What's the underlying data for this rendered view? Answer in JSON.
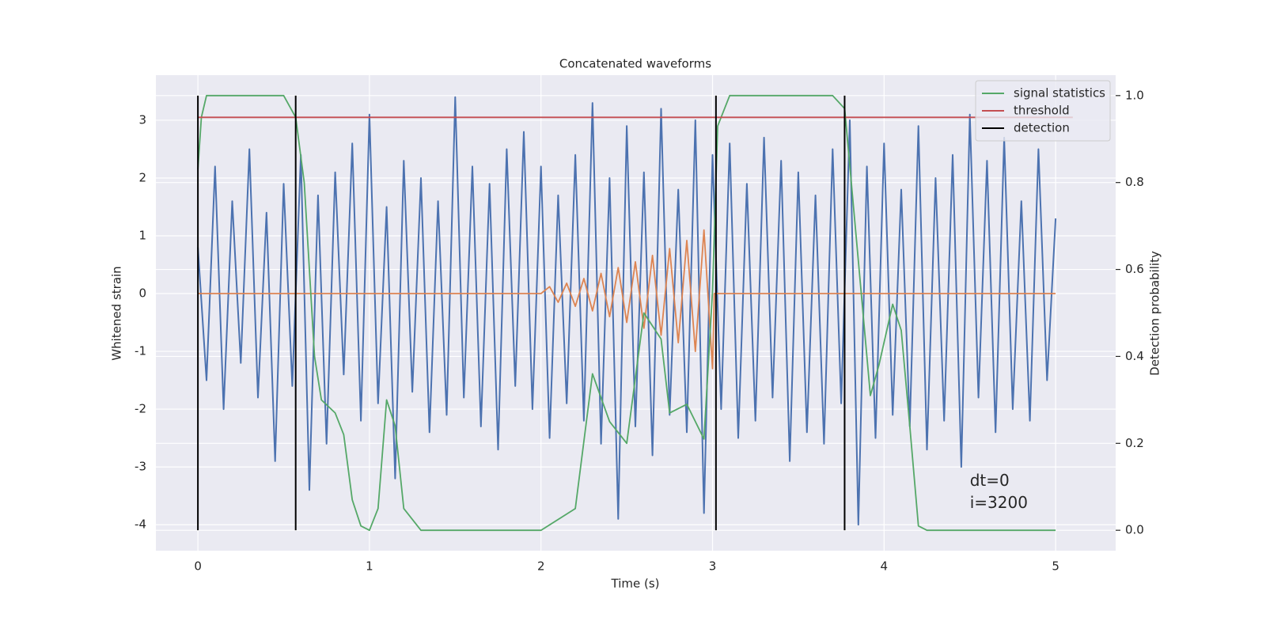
{
  "chart_data": {
    "type": "line",
    "title": "Concatenated waveforms",
    "xlabel": "Time (s)",
    "ylabel": "Whitened strain",
    "y2label": "Detection probability",
    "xlim": [
      -0.245,
      5.35
    ],
    "ylim": [
      -4.45,
      3.78
    ],
    "y2lim": [
      -0.047,
      1.047
    ],
    "xticks": [
      0,
      1,
      2,
      3,
      4,
      5
    ],
    "yticks": [
      -4,
      -3,
      -2,
      -1,
      0,
      1,
      2,
      3
    ],
    "y2ticks": [
      {
        "value": 0,
        "label": "0.0"
      },
      0.2,
      0.4,
      0.6,
      0.8,
      {
        "value": 1,
        "label": "1.0"
      }
    ],
    "grid": true,
    "legend": "upper right",
    "series": [
      {
        "color": "#4c72b0",
        "kind": "line",
        "x": [
          0,
          0.05,
          0.1,
          0.15,
          0.2,
          0.25,
          0.3,
          0.35,
          0.4,
          0.45,
          0.5,
          0.55,
          0.6,
          0.65,
          0.7,
          0.75,
          0.8,
          0.85,
          0.9,
          0.95,
          1,
          1.05,
          1.1,
          1.15,
          1.2,
          1.25,
          1.3,
          1.35,
          1.4,
          1.45,
          1.5,
          1.55,
          1.6,
          1.65,
          1.7,
          1.75,
          1.8,
          1.85,
          1.9,
          1.95,
          2,
          2.05,
          2.1,
          2.15,
          2.2,
          2.25,
          2.3,
          2.35,
          2.4,
          2.45,
          2.5,
          2.55,
          2.6,
          2.65,
          2.7,
          2.75,
          2.8,
          2.85,
          2.9,
          2.95,
          3,
          3.05,
          3.1,
          3.15,
          3.2,
          3.25,
          3.3,
          3.35,
          3.4,
          3.45,
          3.5,
          3.55,
          3.6,
          3.65,
          3.7,
          3.75,
          3.8,
          3.85,
          3.9,
          3.95,
          4,
          4.05,
          4.1,
          4.15,
          4.2,
          4.25,
          4.3,
          4.35,
          4.4,
          4.45,
          4.5,
          4.55,
          4.6,
          4.65,
          4.7,
          4.75,
          4.8,
          4.85,
          4.9,
          4.95,
          5
        ],
        "values": [
          0.8,
          -1.5,
          2.2,
          -2.0,
          1.6,
          -1.2,
          2.5,
          -1.8,
          1.4,
          -2.9,
          1.9,
          -1.6,
          2.4,
          -3.4,
          1.7,
          -2.6,
          2.1,
          -1.4,
          2.6,
          -2.2,
          3.1,
          -1.9,
          1.5,
          -3.2,
          2.3,
          -1.7,
          2.0,
          -2.4,
          1.6,
          -2.1,
          3.4,
          -1.8,
          2.2,
          -2.3,
          1.9,
          -2.7,
          2.5,
          -1.6,
          2.8,
          -2.0,
          2.2,
          -2.5,
          1.7,
          -1.9,
          2.4,
          -2.2,
          3.3,
          -2.6,
          2.0,
          -3.9,
          2.9,
          -2.3,
          2.1,
          -2.8,
          3.2,
          -2.1,
          1.8,
          -2.4,
          3.0,
          -3.8,
          2.4,
          -2.0,
          2.6,
          -2.5,
          1.9,
          -2.2,
          2.7,
          -1.8,
          2.3,
          -2.9,
          2.1,
          -2.4,
          1.7,
          -2.6,
          2.5,
          -1.9,
          3.0,
          -4.0,
          2.2,
          -2.5,
          2.6,
          -2.1,
          1.8,
          -2.3,
          2.9,
          -2.7,
          2.0,
          -2.2,
          2.4,
          -3.0,
          3.1,
          -1.8,
          2.3,
          -2.4,
          2.7,
          -2.0,
          1.6,
          -2.2,
          2.5,
          -1.5,
          1.3
        ]
      },
      {
        "color": "#dd8452",
        "kind": "line",
        "x": [
          0,
          2.0,
          2.05,
          2.1,
          2.15,
          2.2,
          2.25,
          2.3,
          2.35,
          2.4,
          2.45,
          2.5,
          2.55,
          2.6,
          2.65,
          2.7,
          2.75,
          2.8,
          2.85,
          2.9,
          2.95,
          3.0,
          3.01,
          5
        ],
        "values": [
          0,
          0,
          0.12,
          -0.15,
          0.18,
          -0.22,
          0.26,
          -0.3,
          0.35,
          -0.4,
          0.45,
          -0.5,
          0.55,
          -0.6,
          0.66,
          -0.72,
          0.78,
          -0.85,
          0.92,
          -1.0,
          1.1,
          -1.3,
          0,
          0
        ]
      },
      {
        "name": "signal statistics",
        "color": "#55a868",
        "kind": "line",
        "axis": "y2",
        "x": [
          0,
          0.02,
          0.05,
          0.5,
          0.57,
          0.62,
          0.68,
          0.72,
          0.8,
          0.85,
          0.9,
          0.95,
          1.0,
          1.05,
          1.1,
          1.15,
          1.2,
          1.3,
          2.0,
          2.2,
          2.3,
          2.4,
          2.5,
          2.6,
          2.7,
          2.75,
          2.85,
          2.95,
          3.0,
          3.03,
          3.1,
          3.7,
          3.77,
          3.85,
          3.92,
          3.97,
          4.05,
          4.1,
          4.15,
          4.2,
          4.25,
          5.0
        ],
        "values": [
          0.83,
          0.95,
          1.0,
          1.0,
          0.95,
          0.8,
          0.4,
          0.3,
          0.27,
          0.22,
          0.07,
          0.01,
          0,
          0.05,
          0.3,
          0.24,
          0.05,
          0,
          0,
          0.05,
          0.36,
          0.25,
          0.2,
          0.5,
          0.44,
          0.27,
          0.29,
          0.21,
          0.55,
          0.93,
          1.0,
          1.0,
          0.97,
          0.62,
          0.31,
          0.38,
          0.52,
          0.46,
          0.24,
          0.01,
          0,
          0
        ]
      },
      {
        "name": "threshold",
        "color": "#c44e52",
        "kind": "line",
        "axis": "y2",
        "x": [
          0,
          5.1
        ],
        "values": [
          0.95,
          0.95
        ]
      },
      {
        "name": "detection",
        "color": "#000000",
        "kind": "stem",
        "axis": "y2",
        "x": [
          0,
          0.57,
          3.02,
          3.77
        ],
        "values": [
          1,
          1,
          1,
          1
        ]
      }
    ],
    "annotation": {
      "text": [
        "dt=0",
        "i=3200"
      ],
      "x": 4.5,
      "y": -3.25
    }
  }
}
